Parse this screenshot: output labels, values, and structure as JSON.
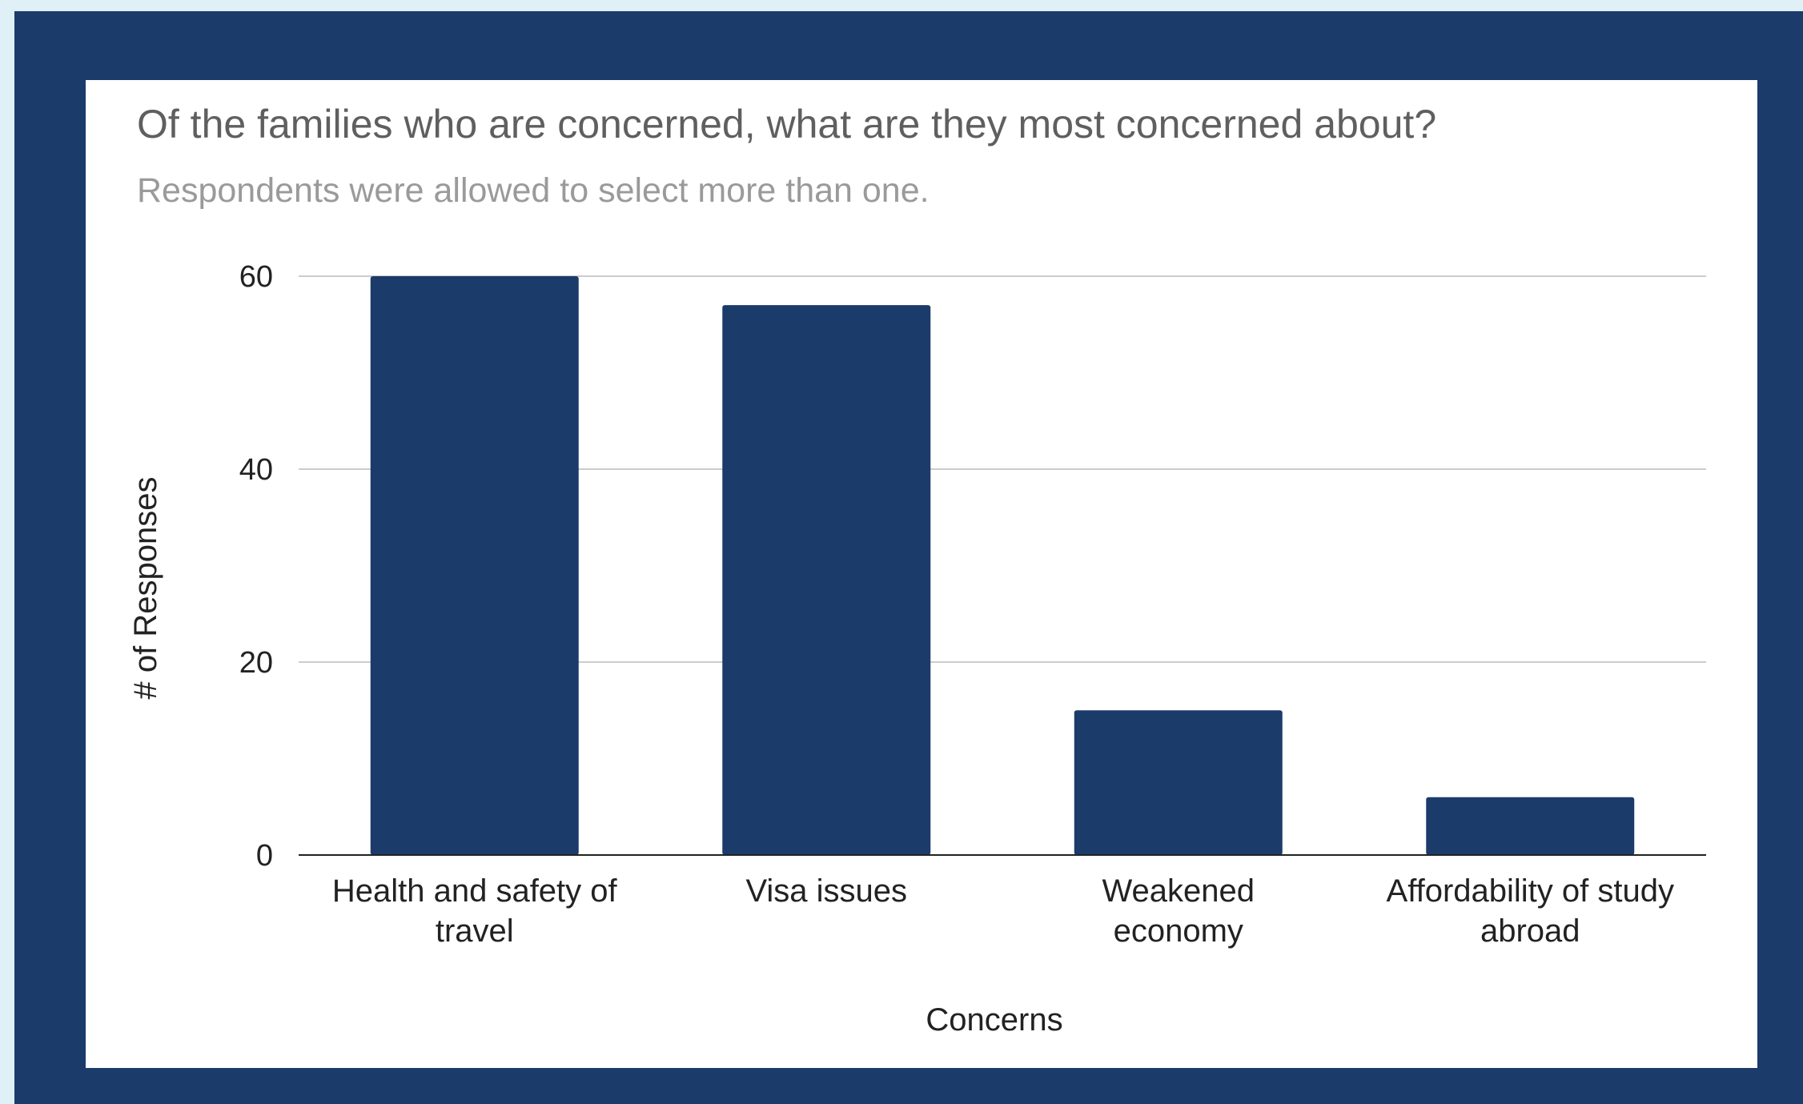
{
  "colors": {
    "frame": "#1b3b6a",
    "bar": "#1b3b6a",
    "grid": "#cccccc",
    "baseline": "#222222"
  },
  "chart_data": {
    "type": "bar",
    "title": "Of the families who are concerned, what are they most concerned about?",
    "subtitle": "Respondents were allowed to select more than one.",
    "xlabel": "Concerns",
    "ylabel": "# of Responses",
    "categories": [
      [
        "Health and safety of",
        "travel"
      ],
      [
        "Visa issues"
      ],
      [
        "Weakened",
        "economy"
      ],
      [
        "Affordability of study",
        "abroad"
      ]
    ],
    "values": [
      60,
      57,
      15,
      6
    ],
    "ylim": [
      0,
      60
    ],
    "yticks": [
      0,
      20,
      40,
      60
    ],
    "grid": true,
    "legend": "none"
  }
}
